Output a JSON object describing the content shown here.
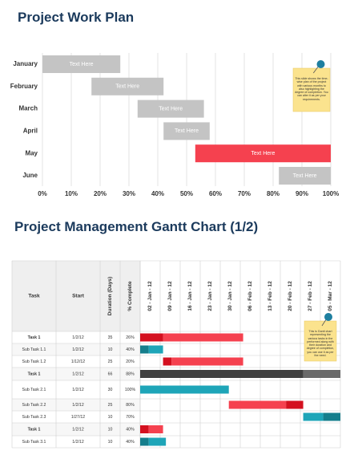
{
  "chart_data": [
    {
      "type": "gantt",
      "title": "Project Work Plan",
      "categories": [
        "January",
        "February",
        "March",
        "April",
        "May",
        "June"
      ],
      "starts": [
        0,
        17,
        33,
        42,
        53,
        82
      ],
      "ends": [
        27,
        42,
        56,
        58,
        100,
        100
      ],
      "bar_labels": [
        "Text Here",
        "Text Here",
        "Text Here",
        "Text Here",
        "Text Here",
        "Text Here"
      ],
      "colors": [
        "#c4c4c4",
        "#c4c4c4",
        "#c4c4c4",
        "#c4c4c4",
        "#f5414f",
        "#c4c4c4"
      ],
      "xlim": [
        0,
        100
      ],
      "xticks": [
        {
          "value": 0,
          "label": "0%"
        },
        {
          "value": 10,
          "label": "10%"
        },
        {
          "value": 20,
          "label": "20%"
        },
        {
          "value": 30,
          "label": "30%"
        },
        {
          "value": 40,
          "label": "40%"
        },
        {
          "value": 50,
          "label": "50%"
        },
        {
          "value": 60,
          "label": "60%"
        },
        {
          "value": 70,
          "label": "70%"
        },
        {
          "value": 80,
          "label": "80%"
        },
        {
          "value": 90,
          "label": "90%"
        },
        {
          "value": 100,
          "label": "100%"
        }
      ],
      "grid": true,
      "note": "This slide shows the time-wise plan of the project with various months to also highlighting the degree of completion. You can alter it as per your requirements."
    },
    {
      "type": "gantt_table",
      "title": "Project Management Gantt Chart (1/2)",
      "columns": [
        "Task",
        "Start",
        "Duration (Days)",
        "% Complete"
      ],
      "rows": [
        [
          "Task 1",
          "1/2/12",
          "35",
          "26%"
        ],
        [
          "Sub Task 1.1",
          "1/2/12",
          "10",
          "40%"
        ],
        [
          "Sub Task 1.2",
          "1/12/12",
          "25",
          "20%"
        ],
        [
          "Task 1",
          "1/2/12",
          "66",
          "88%"
        ],
        [
          "Sub Task 2.1",
          "1/2/12",
          "30",
          "100%"
        ],
        [
          "Sub Task 2.2",
          "1/2/12",
          "25",
          "80%"
        ],
        [
          "Sub Task 2.3",
          "1/27/12",
          "10",
          "70%"
        ],
        [
          "Task 1",
          "1/2/12",
          "10",
          "40%"
        ],
        [
          "Sub Task 3.1",
          "1/2/12",
          "10",
          "40%"
        ]
      ],
      "bars": [
        [
          {
            "start": "2012-01-02",
            "end": "2012-01-10",
            "color": "#d4101f"
          },
          {
            "start": "2012-01-10",
            "end": "2012-02-07",
            "color": "#f5414f"
          }
        ],
        [
          {
            "start": "2012-01-02",
            "end": "2012-01-05",
            "color": "#157e8c"
          },
          {
            "start": "2012-01-05",
            "end": "2012-01-10",
            "color": "#1ea5b8"
          }
        ],
        [
          {
            "start": "2012-01-10",
            "end": "2012-01-13",
            "color": "#d4101f"
          },
          {
            "start": "2012-01-13",
            "end": "2012-02-07",
            "color": "#f5414f"
          }
        ],
        [
          {
            "start": "2012-01-02",
            "end": "2012-02-28",
            "color": "#404040"
          },
          {
            "start": "2012-02-28",
            "end": "2012-03-12",
            "color": "#6a6a6a"
          }
        ],
        [
          {
            "start": "2012-01-02",
            "end": "2012-02-02",
            "color": "#1ea5b8"
          }
        ],
        [
          {
            "start": "2012-02-02",
            "end": "2012-02-22",
            "color": "#f5414f"
          },
          {
            "start": "2012-02-22",
            "end": "2012-02-28",
            "color": "#d4101f"
          }
        ],
        [
          {
            "start": "2012-02-28",
            "end": "2012-03-06",
            "color": "#1ea5b8"
          },
          {
            "start": "2012-03-06",
            "end": "2012-03-12",
            "color": "#157e8c"
          }
        ],
        [
          {
            "start": "2012-01-02",
            "end": "2012-01-05",
            "color": "#d4101f"
          },
          {
            "start": "2012-01-05",
            "end": "2012-01-10",
            "color": "#f5414f"
          }
        ],
        [
          {
            "start": "2012-01-02",
            "end": "2012-01-05",
            "color": "#157e8c"
          },
          {
            "start": "2012-01-05",
            "end": "2012-01-11",
            "color": "#1ea5b8"
          }
        ]
      ],
      "xlim": [
        "2012-01-02",
        "2012-03-12"
      ],
      "xticks": [
        {
          "value": "2012-01-02",
          "label": "02 - Jan - 12"
        },
        {
          "value": "2012-01-09",
          "label": "09 - Jan - 12"
        },
        {
          "value": "2012-01-16",
          "label": "16 - Jan - 12"
        },
        {
          "value": "2012-01-23",
          "label": "23 - Jan - 12"
        },
        {
          "value": "2012-01-30",
          "label": "30 - Jan - 12"
        },
        {
          "value": "2012-02-06",
          "label": "06 - Feb - 12"
        },
        {
          "value": "2012-02-13",
          "label": "13 - Feb - 12"
        },
        {
          "value": "2012-02-20",
          "label": "20 - Feb - 12"
        },
        {
          "value": "2012-02-27",
          "label": "27 - Feb - 12"
        },
        {
          "value": "2012-03-05",
          "label": "05 - Mar - 12"
        }
      ],
      "note": "This is Gantt chart representing the various tasks in the performed along with their duration and degree of completion, you can use it as per the need."
    }
  ]
}
